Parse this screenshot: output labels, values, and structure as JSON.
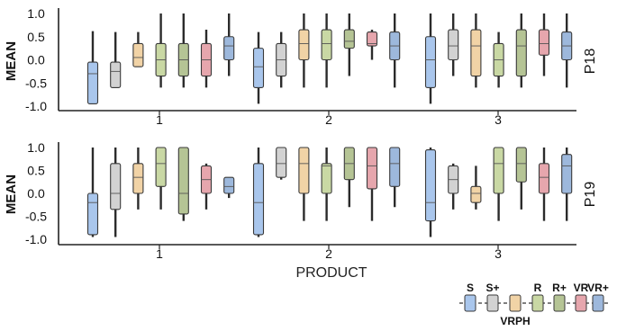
{
  "chart_data": {
    "type": "boxplot",
    "x_title": "PRODUCT",
    "y_title": "MEAN",
    "categories": [
      "1",
      "2",
      "3"
    ],
    "ylim": [
      -1.0,
      1.0
    ],
    "yticks": [
      "1.0",
      "0.5",
      "0.0",
      "-0.5",
      "-1.0"
    ],
    "series": [
      {
        "name": "S",
        "color": "#a9c6ec"
      },
      {
        "name": "S+",
        "color": "#d2d2d2"
      },
      {
        "name": "VRPH",
        "color": "#f1d3a6"
      },
      {
        "name": "R",
        "color": "#c9d8a4"
      },
      {
        "name": "R+",
        "color": "#b5c495"
      },
      {
        "name": "VR",
        "color": "#e6a6ad"
      },
      {
        "name": "VR+",
        "color": "#9db8dc"
      }
    ],
    "panels": [
      {
        "label": "P18",
        "groups": [
          {
            "product": "1",
            "boxes": [
              {
                "whislo": -0.95,
                "q1": -0.95,
                "med": -0.3,
                "q3": -0.05,
                "whishi": 0.62
              },
              {
                "whislo": -0.6,
                "q1": -0.6,
                "med": -0.25,
                "q3": -0.05,
                "whishi": 0.6
              },
              {
                "whislo": -0.15,
                "q1": -0.15,
                "med": 0.05,
                "q3": 0.35,
                "whishi": 0.6
              },
              {
                "whislo": -0.6,
                "q1": -0.35,
                "med": 0.0,
                "q3": 0.35,
                "whishi": 1.0
              },
              {
                "whislo": -0.6,
                "q1": -0.35,
                "med": 0.0,
                "q3": 0.35,
                "whishi": 1.0
              },
              {
                "whislo": -0.6,
                "q1": -0.35,
                "med": 0.0,
                "q3": 0.35,
                "whishi": 0.65
              },
              {
                "whislo": -0.35,
                "q1": 0.0,
                "med": 0.3,
                "q3": 0.5,
                "whishi": 1.0
              }
            ]
          },
          {
            "product": "2",
            "boxes": [
              {
                "whislo": -0.95,
                "q1": -0.6,
                "med": -0.15,
                "q3": 0.25,
                "whishi": 0.6
              },
              {
                "whislo": -0.6,
                "q1": -0.35,
                "med": 0.0,
                "q3": 0.35,
                "whishi": 0.6
              },
              {
                "whislo": -0.6,
                "q1": 0.0,
                "med": 0.35,
                "q3": 0.65,
                "whishi": 1.0
              },
              {
                "whislo": -0.6,
                "q1": 0.0,
                "med": 0.35,
                "q3": 0.65,
                "whishi": 1.0
              },
              {
                "whislo": -0.35,
                "q1": 0.25,
                "med": 0.4,
                "q3": 0.65,
                "whishi": 1.0
              },
              {
                "whislo": 0.0,
                "q1": 0.3,
                "med": 0.35,
                "q3": 0.6,
                "whishi": 0.65
              },
              {
                "whislo": -0.6,
                "q1": 0.0,
                "med": 0.3,
                "q3": 0.6,
                "whishi": 1.0
              }
            ]
          },
          {
            "product": "3",
            "boxes": [
              {
                "whislo": -0.95,
                "q1": -0.6,
                "med": 0.0,
                "q3": 0.5,
                "whishi": 1.0
              },
              {
                "whislo": -0.35,
                "q1": 0.0,
                "med": 0.3,
                "q3": 0.65,
                "whishi": 1.0
              },
              {
                "whislo": -0.6,
                "q1": -0.35,
                "med": 0.3,
                "q3": 0.65,
                "whishi": 1.0
              },
              {
                "whislo": -0.6,
                "q1": -0.35,
                "med": 0.0,
                "q3": 0.35,
                "whishi": 0.6
              },
              {
                "whislo": -0.6,
                "q1": -0.35,
                "med": 0.3,
                "q3": 0.65,
                "whishi": 1.0
              },
              {
                "whislo": -0.35,
                "q1": 0.1,
                "med": 0.35,
                "q3": 0.65,
                "whishi": 1.0
              },
              {
                "whislo": -0.6,
                "q1": 0.0,
                "med": 0.3,
                "q3": 0.6,
                "whishi": 1.0
              }
            ]
          }
        ]
      },
      {
        "label": "P19",
        "groups": [
          {
            "product": "1",
            "boxes": [
              {
                "whislo": -0.95,
                "q1": -0.9,
                "med": -0.2,
                "q3": 0.0,
                "whishi": 1.0
              },
              {
                "whislo": -0.95,
                "q1": -0.35,
                "med": 0.0,
                "q3": 0.65,
                "whishi": 1.0
              },
              {
                "whislo": -0.35,
                "q1": 0.0,
                "med": 0.35,
                "q3": 0.65,
                "whishi": 1.0
              },
              {
                "whislo": -0.35,
                "q1": 0.15,
                "med": 0.65,
                "q3": 1.0,
                "whishi": 1.0
              },
              {
                "whislo": -0.6,
                "q1": -0.45,
                "med": 0.0,
                "q3": 1.0,
                "whishi": 1.0
              },
              {
                "whislo": -0.35,
                "q1": 0.0,
                "med": 0.3,
                "q3": 0.6,
                "whishi": 0.65
              },
              {
                "whislo": -0.1,
                "q1": 0.0,
                "med": 0.15,
                "q3": 0.35,
                "whishi": 0.35
              }
            ]
          },
          {
            "product": "2",
            "boxes": [
              {
                "whislo": -0.95,
                "q1": -0.9,
                "med": -0.2,
                "q3": 0.65,
                "whishi": 1.0
              },
              {
                "whislo": 0.3,
                "q1": 0.35,
                "med": 0.65,
                "q3": 1.0,
                "whishi": 1.0
              },
              {
                "whislo": -0.6,
                "q1": 0.0,
                "med": 0.65,
                "q3": 1.0,
                "whishi": 1.0
              },
              {
                "whislo": -0.6,
                "q1": 0.0,
                "med": 0.6,
                "q3": 0.65,
                "whishi": 1.0
              },
              {
                "whislo": -0.3,
                "q1": 0.3,
                "med": 0.65,
                "q3": 1.0,
                "whishi": 1.0
              },
              {
                "whislo": -0.6,
                "q1": 0.1,
                "med": 0.6,
                "q3": 1.0,
                "whishi": 1.0
              },
              {
                "whislo": -0.3,
                "q1": 0.15,
                "med": 0.65,
                "q3": 1.0,
                "whishi": 1.0
              }
            ]
          },
          {
            "product": "3",
            "boxes": [
              {
                "whislo": -0.95,
                "q1": -0.6,
                "med": -0.2,
                "q3": 0.95,
                "whishi": 1.0
              },
              {
                "whislo": -0.35,
                "q1": 0.0,
                "med": 0.3,
                "q3": 0.6,
                "whishi": 0.65
              },
              {
                "whislo": -0.35,
                "q1": -0.2,
                "med": 0.0,
                "q3": 0.15,
                "whishi": 0.6
              },
              {
                "whislo": -0.6,
                "q1": 0.0,
                "med": 0.65,
                "q3": 1.0,
                "whishi": 1.0
              },
              {
                "whislo": -0.35,
                "q1": 0.25,
                "med": 0.65,
                "q3": 1.0,
                "whishi": 1.0
              },
              {
                "whislo": -0.6,
                "q1": 0.0,
                "med": 0.35,
                "q3": 0.65,
                "whishi": 1.0
              },
              {
                "whislo": -0.6,
                "q1": 0.0,
                "med": 0.6,
                "q3": 0.85,
                "whishi": 1.0
              }
            ]
          }
        ]
      }
    ]
  }
}
